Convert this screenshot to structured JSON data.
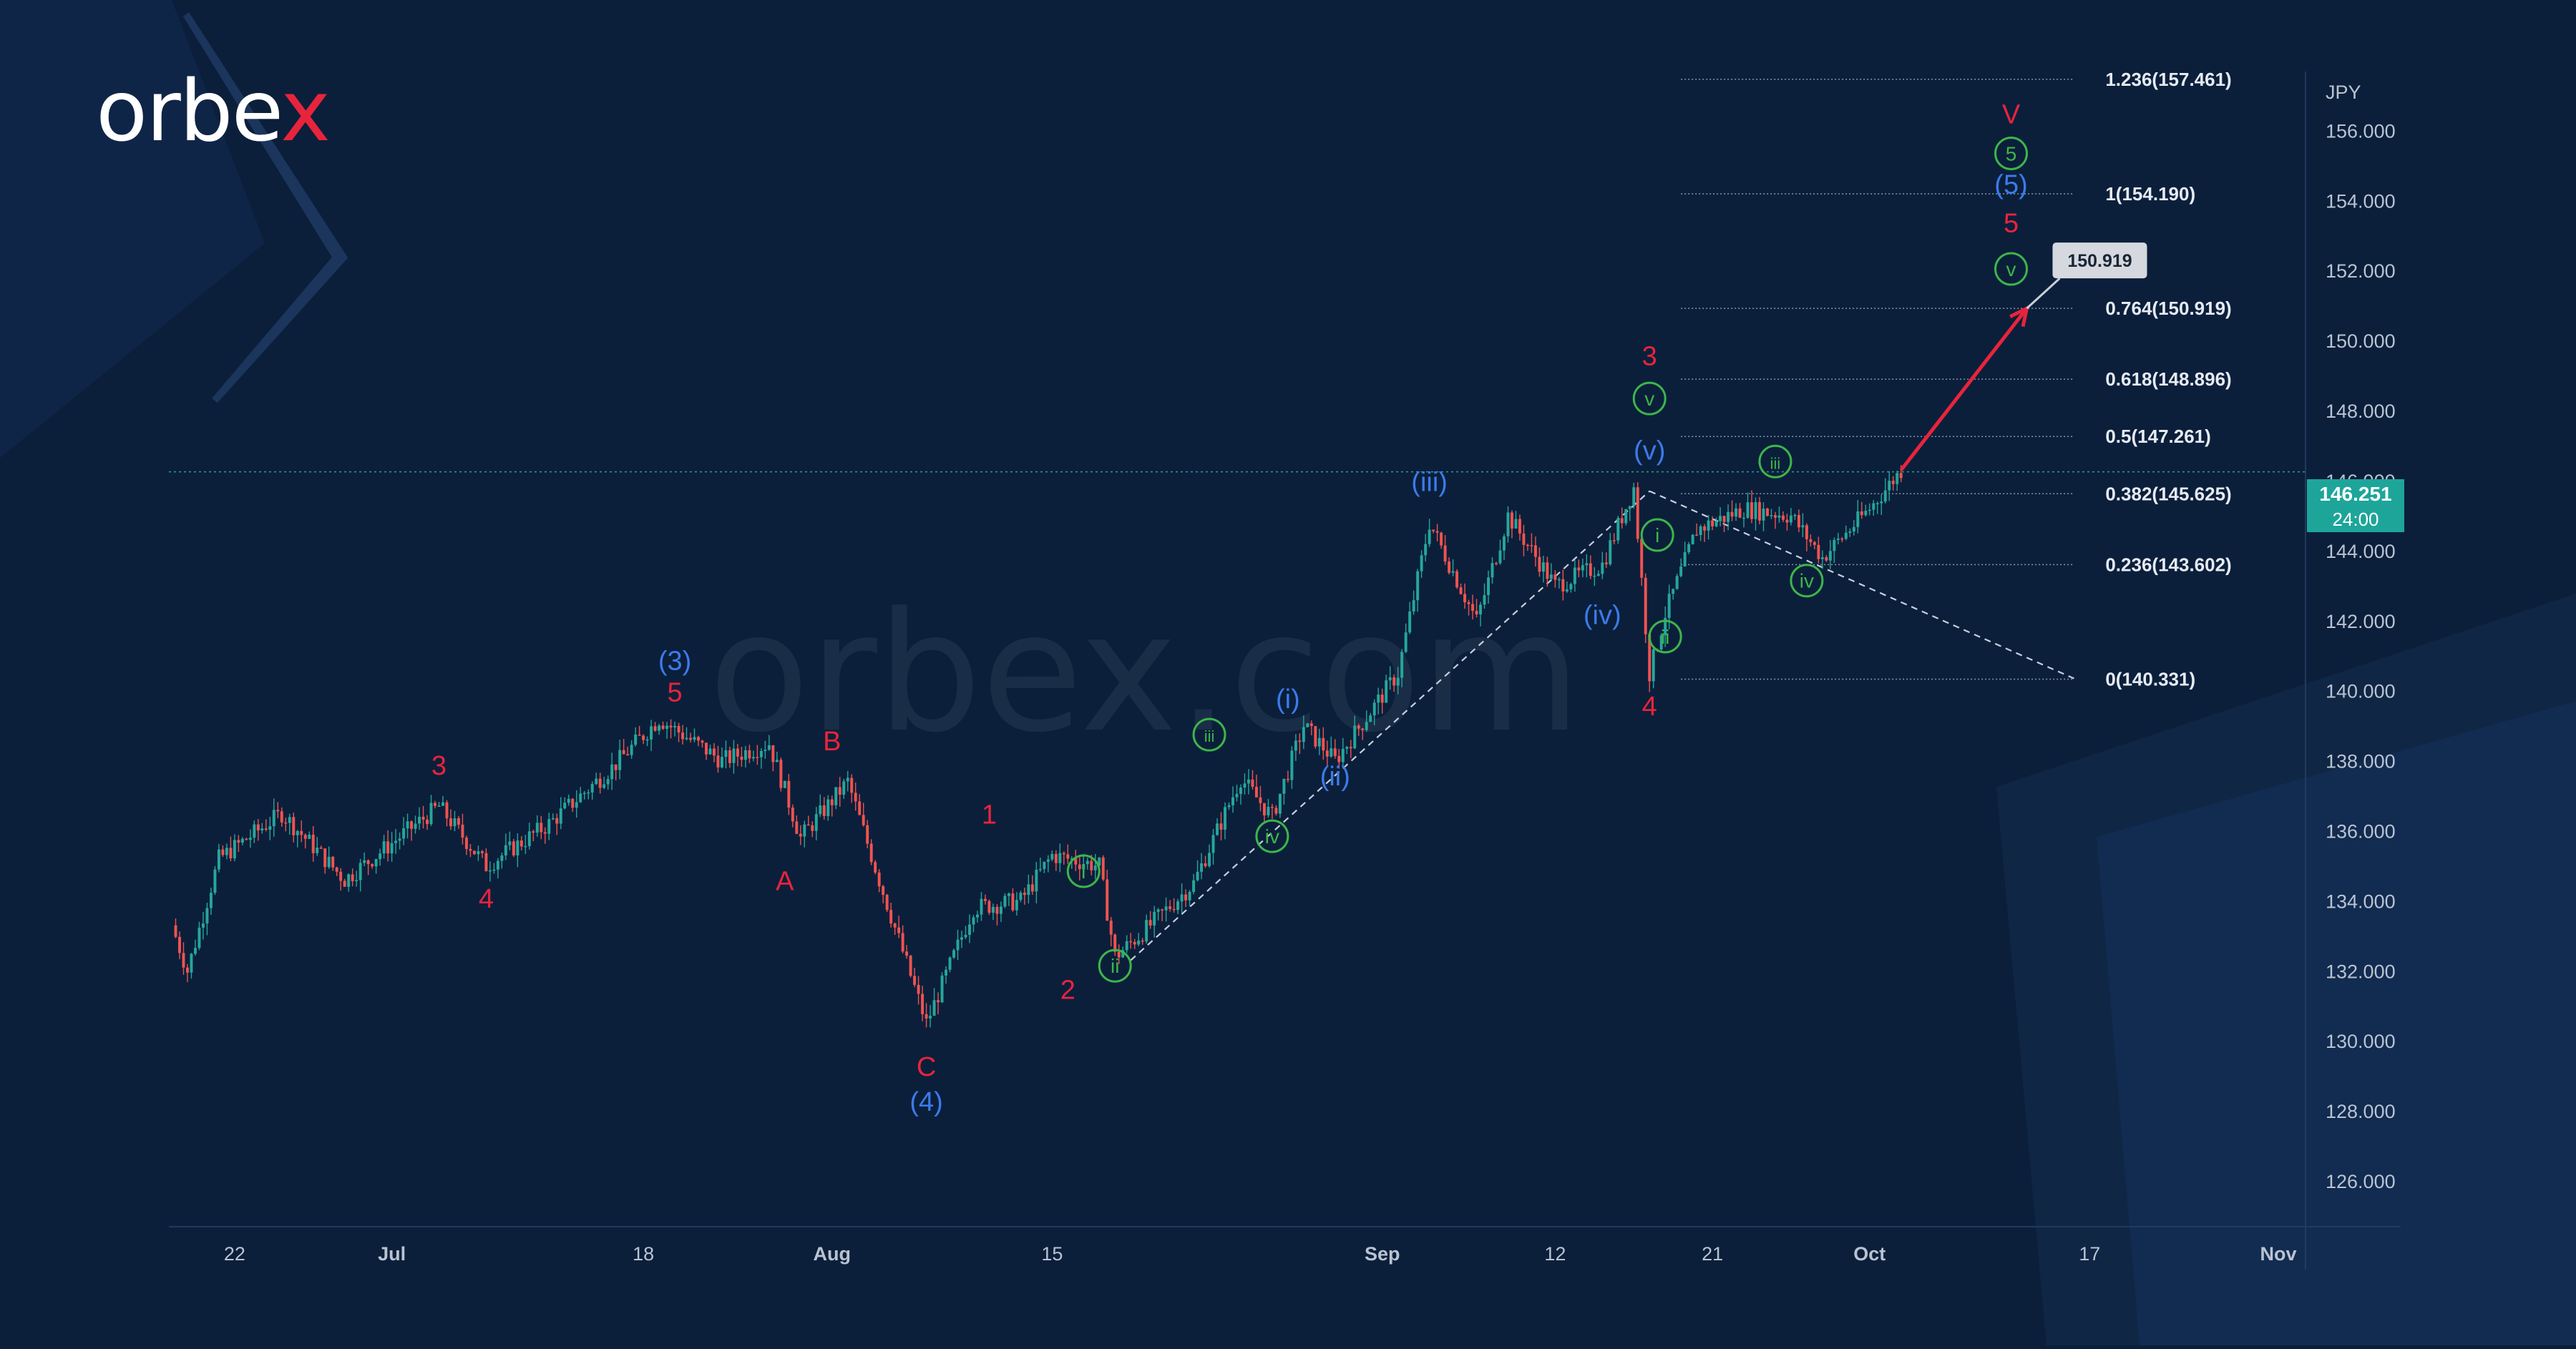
{
  "brand": {
    "logo_text": "orbex",
    "watermark_text": "orbex.com"
  },
  "colors": {
    "background": "#0b1f3b",
    "wave_red": "#e8243c",
    "wave_blue": "#3b7bea",
    "wave_green": "#3db54a",
    "candle_up": "#26a69a",
    "candle_down": "#ef5350",
    "current_price_bg": "#1ea59a",
    "fib_line": "#8a97ab",
    "axis_text": "#b9c3d1"
  },
  "chart_data": {
    "type": "candlestick",
    "symbol_currency": "JPY",
    "current_price": "146.251",
    "countdown": "24:00",
    "target_label": "150.919",
    "x_ticks": [
      "22",
      "Jul",
      "18",
      "Aug",
      "15",
      "Sep",
      "12",
      "21",
      "Oct",
      "17",
      "Nov"
    ],
    "y_ticks": [
      "156.000",
      "154.000",
      "152.000",
      "150.000",
      "148.000",
      "146.000",
      "144.000",
      "142.000",
      "140.000",
      "138.000",
      "136.000",
      "134.000",
      "132.000",
      "130.000",
      "128.000",
      "126.000"
    ],
    "ylim": [
      125,
      158.5
    ],
    "fib_levels": [
      {
        "label": "1.236(157.461)",
        "value": 157.461
      },
      {
        "label": "1(154.190)",
        "value": 154.19
      },
      {
        "label": "0.764(150.919)",
        "value": 150.919
      },
      {
        "label": "0.618(148.896)",
        "value": 148.896
      },
      {
        "label": "0.5(147.261)",
        "value": 147.261
      },
      {
        "label": "0.382(145.625)",
        "value": 145.625
      },
      {
        "label": "0.236(143.602)",
        "value": 143.602
      },
      {
        "label": "0(140.331)",
        "value": 140.331
      }
    ],
    "price_path": [
      {
        "t": 0,
        "p": 133.3
      },
      {
        "t": 1,
        "p": 132.0
      },
      {
        "t": 3,
        "p": 135.2
      },
      {
        "t": 7,
        "p": 136.5
      },
      {
        "t": 11,
        "p": 134.6
      },
      {
        "t": 17,
        "p": 136.7
      },
      {
        "t": 20,
        "p": 135.0
      },
      {
        "t": 24,
        "p": 136.2
      },
      {
        "t": 28,
        "p": 137.8
      },
      {
        "t": 31,
        "p": 139.2
      },
      {
        "t": 35,
        "p": 138.0
      },
      {
        "t": 38,
        "p": 138.5
      },
      {
        "t": 40,
        "p": 135.8
      },
      {
        "t": 43,
        "p": 137.4
      },
      {
        "t": 45,
        "p": 134.6
      },
      {
        "t": 48,
        "p": 130.5
      },
      {
        "t": 51,
        "p": 133.8
      },
      {
        "t": 54,
        "p": 134.0
      },
      {
        "t": 56,
        "p": 135.3
      },
      {
        "t": 59,
        "p": 135.0
      },
      {
        "t": 60,
        "p": 132.4
      },
      {
        "t": 62,
        "p": 133.2
      },
      {
        "t": 65,
        "p": 134.5
      },
      {
        "t": 68,
        "p": 137.5
      },
      {
        "t": 70,
        "p": 136.4
      },
      {
        "t": 72,
        "p": 139.0
      },
      {
        "t": 74,
        "p": 138.0
      },
      {
        "t": 78,
        "p": 140.5
      },
      {
        "t": 80,
        "p": 144.8
      },
      {
        "t": 83,
        "p": 142.0
      },
      {
        "t": 85,
        "p": 145.0
      },
      {
        "t": 88,
        "p": 143.0
      },
      {
        "t": 91,
        "p": 143.6
      },
      {
        "t": 93,
        "p": 145.8
      },
      {
        "t": 94,
        "p": 140.5
      },
      {
        "t": 95,
        "p": 142.2
      },
      {
        "t": 97,
        "p": 144.6
      },
      {
        "t": 100,
        "p": 145.2
      },
      {
        "t": 103,
        "p": 145.0
      },
      {
        "t": 105,
        "p": 143.8
      },
      {
        "t": 108,
        "p": 145.2
      },
      {
        "t": 110,
        "p": 146.3
      }
    ],
    "projection": [
      {
        "t": 110,
        "p": 146.3
      },
      {
        "t": 118,
        "p": 150.919
      }
    ],
    "triangle_lines": [
      [
        {
          "t": 61,
          "p": 132.3
        },
        {
          "t": 94,
          "p": 145.7
        }
      ],
      [
        {
          "t": 94,
          "p": 145.7
        },
        {
          "t": 121,
          "p": 140.35
        }
      ]
    ],
    "wave_labels": [
      {
        "text": "(3)",
        "color": "blue",
        "t": 32,
        "p": 140.6
      },
      {
        "text": "5",
        "color": "red",
        "t": 32,
        "p": 139.7
      },
      {
        "text": "3",
        "color": "red",
        "t": 17,
        "p": 137.6
      },
      {
        "text": "4",
        "color": "red",
        "t": 20,
        "p": 133.8
      },
      {
        "text": "B",
        "color": "red",
        "t": 42,
        "p": 138.3
      },
      {
        "text": "A",
        "color": "red",
        "t": 39,
        "p": 134.3
      },
      {
        "text": "C",
        "color": "red",
        "t": 48,
        "p": 129.0
      },
      {
        "text": "(4)",
        "color": "blue",
        "t": 48,
        "p": 128.0
      },
      {
        "text": "1",
        "color": "red",
        "t": 52,
        "p": 136.2
      },
      {
        "text": "2",
        "color": "red",
        "t": 57,
        "p": 131.2
      },
      {
        "text": "i",
        "color": "green",
        "t": 58,
        "p": 134.6,
        "circled": true
      },
      {
        "text": "ii",
        "color": "green",
        "t": 60,
        "p": 131.9,
        "circled": true
      },
      {
        "text": "iii",
        "color": "green",
        "t": 66,
        "p": 138.5,
        "circled": true
      },
      {
        "text": "iv",
        "color": "green",
        "t": 70,
        "p": 135.6,
        "circled": true
      },
      {
        "text": "(i)",
        "color": "blue",
        "t": 71,
        "p": 139.5
      },
      {
        "text": "(ii)",
        "color": "blue",
        "t": 74,
        "p": 137.3
      },
      {
        "text": "(iii)",
        "color": "blue",
        "t": 80,
        "p": 145.7
      },
      {
        "text": "(iv)",
        "color": "blue",
        "t": 91,
        "p": 141.9
      },
      {
        "text": "(v)",
        "color": "blue",
        "t": 94,
        "p": 146.6
      },
      {
        "text": "v",
        "color": "green",
        "t": 94,
        "p": 148.1,
        "circled": true
      },
      {
        "text": "3",
        "color": "red",
        "t": 94,
        "p": 149.3
      },
      {
        "text": "4",
        "color": "red",
        "t": 94,
        "p": 139.3
      },
      {
        "text": "i",
        "color": "green",
        "t": 94.5,
        "p": 144.2,
        "circled": true
      },
      {
        "text": "ii",
        "color": "green",
        "t": 95,
        "p": 141.3,
        "circled": true
      },
      {
        "text": "iii",
        "color": "green",
        "t": 102,
        "p": 146.3,
        "circled": true
      },
      {
        "text": "iv",
        "color": "green",
        "t": 104,
        "p": 142.9,
        "circled": true
      },
      {
        "text": "v",
        "color": "green",
        "t": 117,
        "p": 151.8,
        "circled": true
      },
      {
        "text": "5",
        "color": "red",
        "t": 117,
        "p": 153.1
      },
      {
        "text": "(5)",
        "color": "blue",
        "t": 117,
        "p": 154.2
      },
      {
        "text": "5",
        "color": "green",
        "t": 117,
        "p": 155.1,
        "circled": true
      },
      {
        "text": "V",
        "color": "red",
        "t": 117,
        "p": 156.2
      }
    ]
  }
}
